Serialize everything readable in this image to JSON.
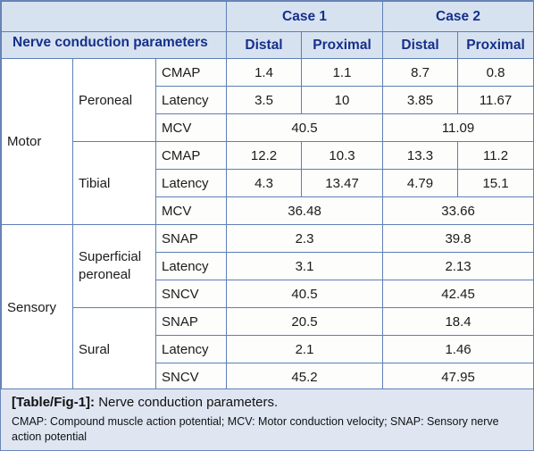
{
  "header": {
    "param_label": "Nerve conduction parameters",
    "case1": "Case 1",
    "case2": "Case 2",
    "distal": "Distal",
    "proximal": "Proximal"
  },
  "groups": {
    "motor": "Motor",
    "sensory": "Sensory"
  },
  "nerves": {
    "peroneal": "Peroneal",
    "tibial": "Tibial",
    "superficial_peroneal": "Superficial peroneal",
    "sural": "Sural"
  },
  "rows": {
    "peroneal_cmap": {
      "label": "CMAP",
      "c1d": "1.4",
      "c1p": "1.1",
      "c2d": "8.7",
      "c2p": "0.8"
    },
    "peroneal_latency": {
      "label": "Latency",
      "c1d": "3.5",
      "c1p": "10",
      "c2d": "3.85",
      "c2p": "11.67"
    },
    "peroneal_mcv": {
      "label": "MCV",
      "c1": "40.5",
      "c2": "11.09"
    },
    "tibial_cmap": {
      "label": "CMAP",
      "c1d": "12.2",
      "c1p": "10.3",
      "c2d": "13.3",
      "c2p": "11.2"
    },
    "tibial_latency": {
      "label": "Latency",
      "c1d": "4.3",
      "c1p": "13.47",
      "c2d": "4.79",
      "c2p": "15.1"
    },
    "tibial_mcv": {
      "label": "MCV",
      "c1": "36.48",
      "c2": "33.66"
    },
    "sp_snap": {
      "label": "SNAP",
      "c1": "2.3",
      "c2": "39.8"
    },
    "sp_latency": {
      "label": "Latency",
      "c1": "3.1",
      "c2": "2.13"
    },
    "sp_sncv": {
      "label": "SNCV",
      "c1": "40.5",
      "c2": "42.45"
    },
    "sural_snap": {
      "label": "SNAP",
      "c1": "20.5",
      "c2": "18.4"
    },
    "sural_latency": {
      "label": "Latency",
      "c1": "2.1",
      "c2": "1.46"
    },
    "sural_sncv": {
      "label": "SNCV",
      "c1": "45.2",
      "c2": "47.95"
    }
  },
  "caption": {
    "tag": "[Table/Fig-1]:",
    "title": "Nerve conduction parameters.",
    "note": "CMAP: Compound muscle action potential; MCV: Motor conduction velocity; SNAP: Sensory nerve action potential"
  }
}
